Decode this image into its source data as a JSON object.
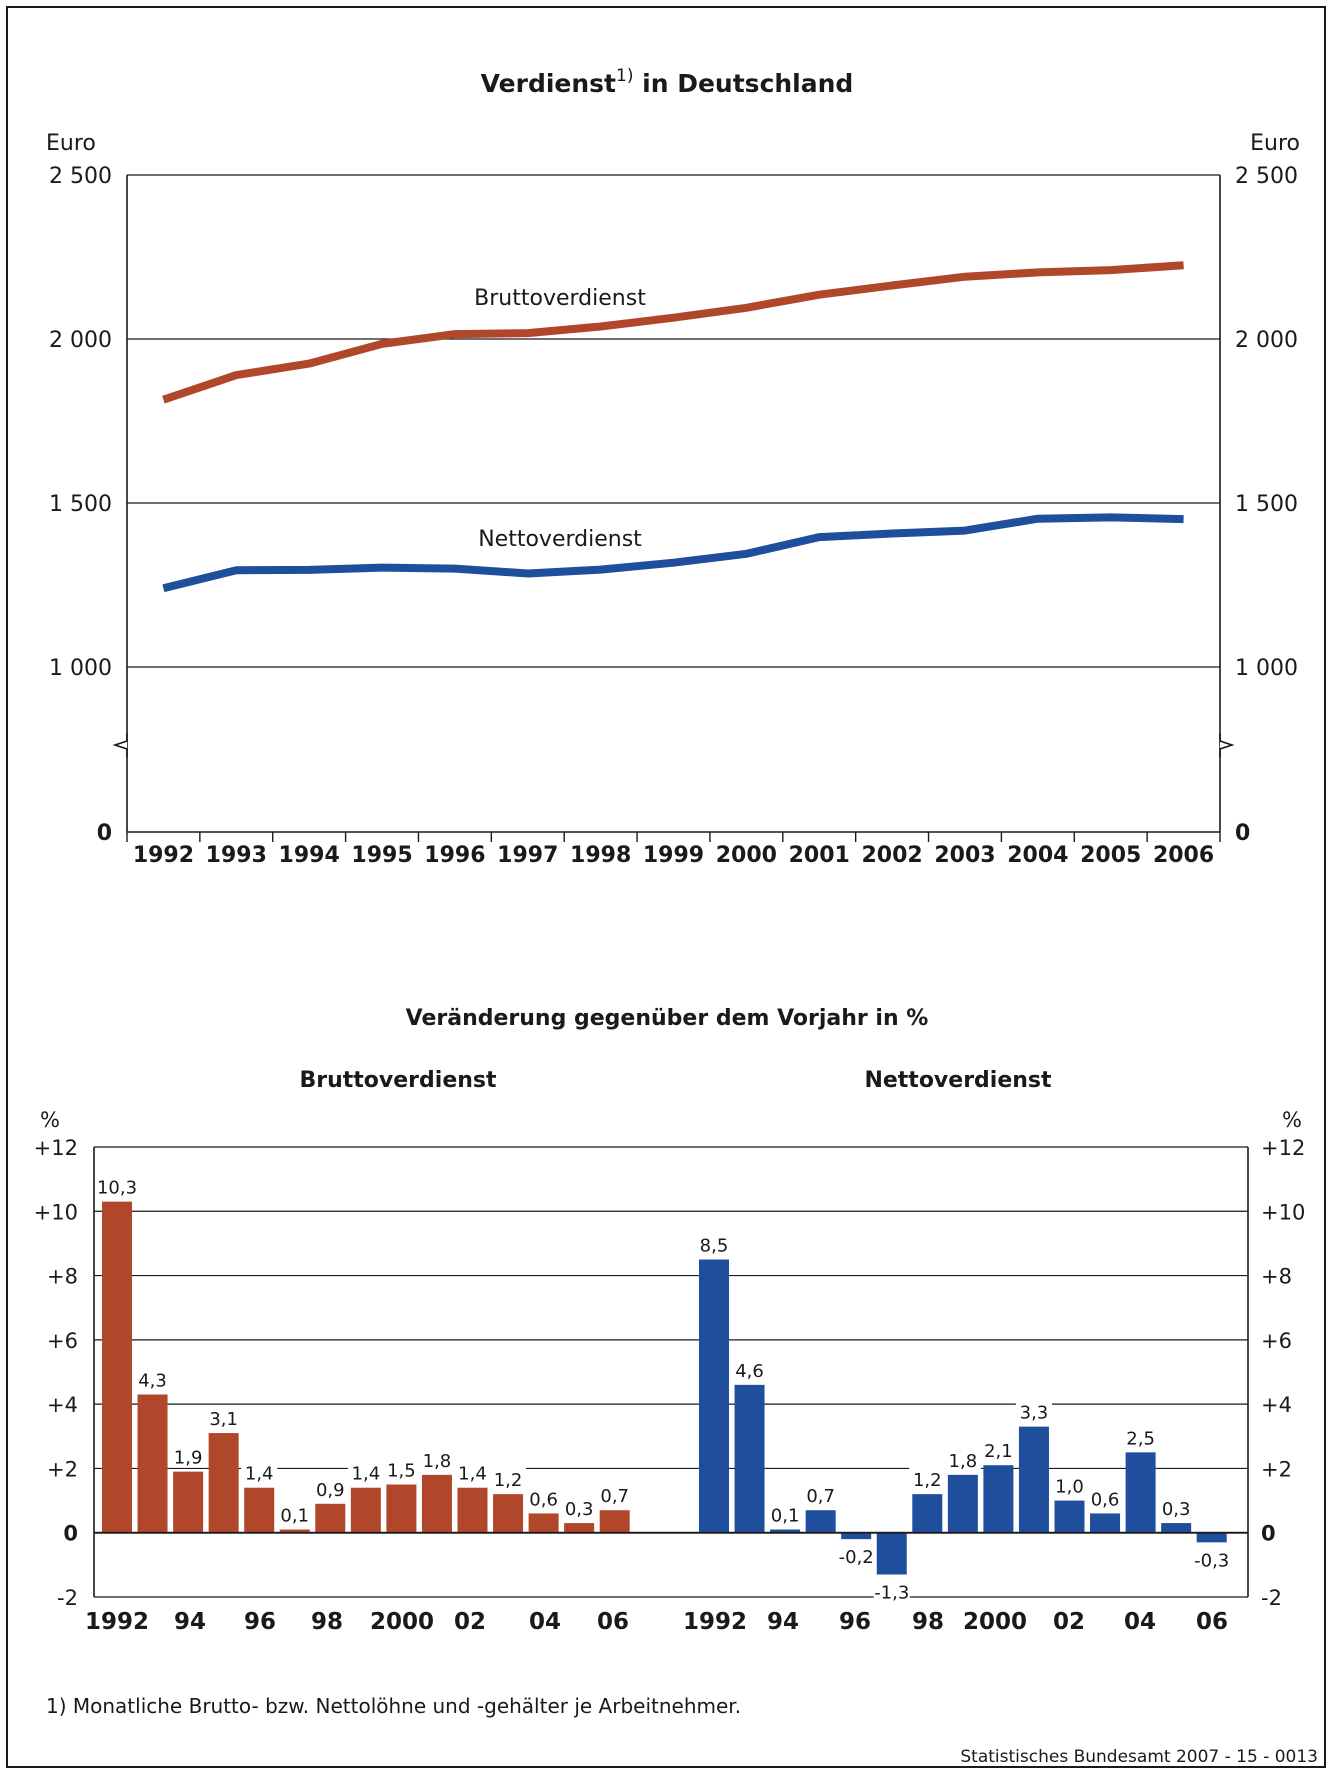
{
  "colors": {
    "brutto": "#B0472A",
    "netto": "#1F4E9C",
    "text": "#1a1a1a"
  },
  "footnote": "1) Monatliche Brutto- bzw. Nettolöhne und -gehälter je Arbeitnehmer.",
  "source": "Statistisches Bundesamt 2007 - 15 - 0013",
  "chart_data": [
    {
      "type": "line",
      "title": "Verdienst",
      "title_sup": "1)",
      "title_suffix": " in Deutschland",
      "ylabel": "Euro",
      "ylim": [
        0,
        2500
      ],
      "axis_break": true,
      "grid": true,
      "y_ticks": [
        {
          "value": 0,
          "label": "0"
        },
        {
          "value": 1000,
          "label": "1 000"
        },
        {
          "value": 1500,
          "label": "1 500"
        },
        {
          "value": 2000,
          "label": "2 000"
        },
        {
          "value": 2500,
          "label": "2 500"
        }
      ],
      "x": [
        "1992",
        "1993",
        "1994",
        "1995",
        "1996",
        "1997",
        "1998",
        "1999",
        "2000",
        "2001",
        "2002",
        "2003",
        "2004",
        "2005",
        "2006"
      ],
      "series": [
        {
          "name": "Bruttoverdienst",
          "values": [
            1815,
            1890,
            1925,
            1985,
            2015,
            2018,
            2038,
            2065,
            2095,
            2135,
            2163,
            2190,
            2203,
            2210,
            2225
          ]
        },
        {
          "name": "Nettoverdienst",
          "values": [
            1240,
            1295,
            1296,
            1303,
            1300,
            1285,
            1297,
            1318,
            1345,
            1396,
            1407,
            1416,
            1452,
            1456,
            1451
          ]
        }
      ]
    },
    {
      "type": "bar",
      "title": "Veränderung gegenüber dem Vorjahr in %",
      "ylabel": "%",
      "ylim": [
        -2,
        12
      ],
      "grid": true,
      "y_ticks": [
        {
          "value": -2,
          "label": "-2"
        },
        {
          "value": 0,
          "label": "0"
        },
        {
          "value": 2,
          "label": "+2"
        },
        {
          "value": 4,
          "label": "+4"
        },
        {
          "value": 6,
          "label": "+6"
        },
        {
          "value": 8,
          "label": "+8"
        },
        {
          "value": 10,
          "label": "+10"
        },
        {
          "value": 12,
          "label": "+12"
        }
      ],
      "groups": [
        {
          "name": "Bruttoverdienst",
          "x_labels": [
            "1992",
            "94",
            "96",
            "98",
            "2000",
            "02",
            "04",
            "06"
          ],
          "values": [
            10.3,
            4.3,
            1.9,
            3.1,
            1.4,
            0.1,
            0.9,
            1.4,
            1.5,
            1.8,
            1.4,
            1.2,
            0.6,
            0.3,
            0.7
          ],
          "value_labels": [
            "10,3",
            "4,3",
            "1,9",
            "3,1",
            "1,4",
            "0,1",
            "0,9",
            "1,4",
            "1,5",
            "1,8",
            "1,4",
            "1,2",
            "0,6",
            "0,3",
            "0,7"
          ]
        },
        {
          "name": "Nettoverdienst",
          "x_labels": [
            "1992",
            "94",
            "96",
            "98",
            "2000",
            "02",
            "04",
            "06"
          ],
          "values": [
            8.5,
            4.6,
            0.1,
            0.7,
            -0.2,
            -1.3,
            1.2,
            1.8,
            2.1,
            3.3,
            1.0,
            0.6,
            2.5,
            0.3,
            -0.3
          ],
          "value_labels": [
            "8,5",
            "4,6",
            "0,1",
            "0,7",
            "-0,2",
            "-1,3",
            "1,2",
            "1,8",
            "2,1",
            "3,3",
            "1,0",
            "0,6",
            "2,5",
            "0,3",
            "-0,3"
          ]
        }
      ]
    }
  ]
}
